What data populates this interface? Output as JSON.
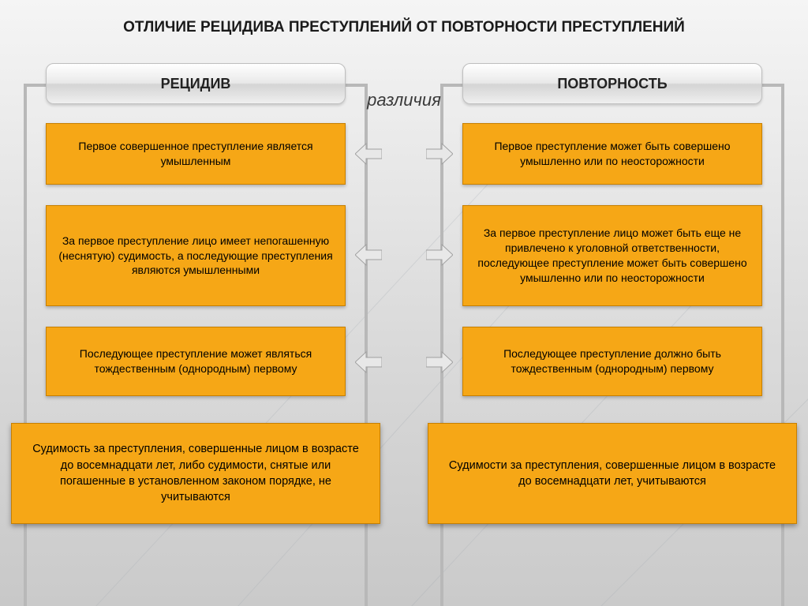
{
  "title": "ОТЛИЧИЕ РЕЦИДИВА ПРЕСТУПЛЕНИЙ ОТ ПОВТОРНОСТИ ПРЕСТУПЛЕНИЙ",
  "subtitle": "различия",
  "headers": {
    "left": "РЕЦИДИВ",
    "right": "ПОВТОРНОСТЬ"
  },
  "rows": [
    {
      "left": "Первое совершенное преступление является умышленным",
      "right": "Первое преступление может быть совершено умышленно или по неосторожности"
    },
    {
      "left": "За первое преступление лицо имеет непогашенную (неснятую) судимость, а последующие преступления являются умышленными",
      "right": "За первое преступление лицо может быть еще не привлечено к уголовной ответственности, последующее преступление может быть совершено умышленно или по неосторожности"
    },
    {
      "left": "Последующее преступление может являться тождественным (однородным) первому",
      "right": "Последующее преступление должно быть тождественным (однородным) первому"
    }
  ],
  "footers": {
    "left": "Судимость за преступления, совершенные лицом в возрасте до восемнадцати лет, либо судимости, снятые или погашенные в установленном законом порядке, не учитываются",
    "right": "Судимости за преступления, совершенные лицом в возрасте до восемнадцати лет, учитываются"
  },
  "style": {
    "box_fill": "#f6a716",
    "box_border": "#c77f00",
    "arrow_fill": "#e8e8e8",
    "arrow_stroke": "#a0a0a0",
    "background_top": "#f5f5f5",
    "background_bottom": "#c8c8c8",
    "header_font_size": 18,
    "box_font_size": 14,
    "title_font_size": 19,
    "subtitle_font_size": 22
  }
}
